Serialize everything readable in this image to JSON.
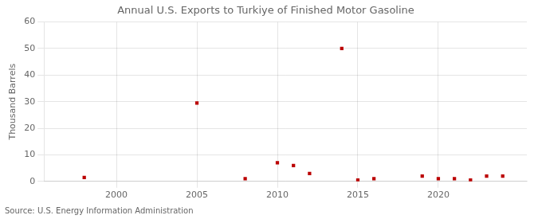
{
  "chart_data": {
    "type": "scatter",
    "title": "Annual U.S. Exports to Turkiye of Finished Motor Gasoline",
    "ylabel": "Thousand Barrels",
    "annotation": "Source: U.S. Energy Information Administration",
    "x": [
      1998,
      2005,
      2008,
      2010,
      2011,
      2012,
      2014,
      2015,
      2016,
      2019,
      2020,
      2021,
      2022,
      2023,
      2024
    ],
    "values": [
      1.5,
      29.5,
      1.0,
      7.0,
      6.0,
      3.0,
      50.0,
      0.5,
      1.0,
      2.0,
      1.0,
      1.0,
      0.5,
      2.0,
      2.0
    ],
    "color": "#bb0000",
    "marker": "square",
    "xlim": [
      1995.5,
      2025.5
    ],
    "xticks": [
      2000,
      2005,
      2010,
      2015,
      2020
    ],
    "ylim": [
      0,
      60
    ],
    "yticks": [
      0,
      10,
      20,
      30,
      40,
      50,
      60
    ],
    "grid": true
  }
}
